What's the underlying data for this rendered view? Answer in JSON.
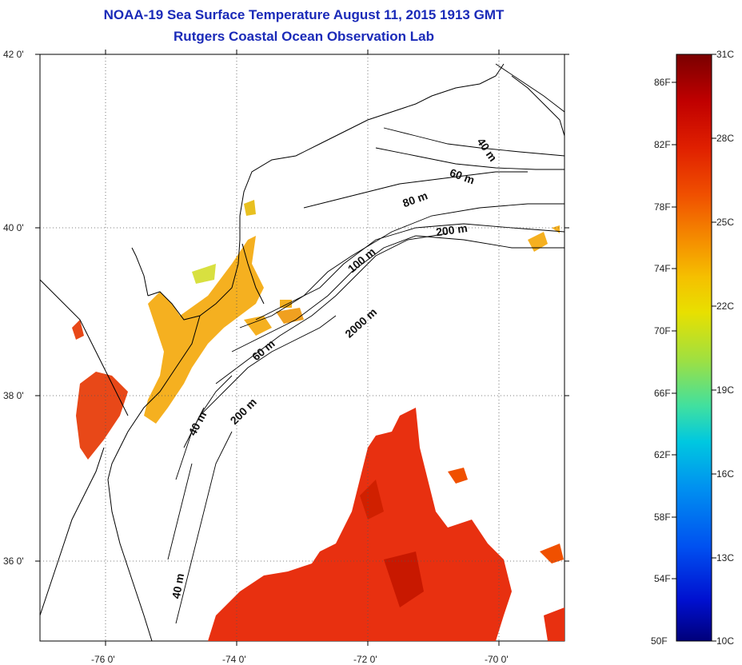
{
  "title": "NOAA-19 Sea Surface Temperature August 11, 2015 1913 GMT",
  "subtitle": "Rutgers Coastal Ocean Observation Lab",
  "axes": {
    "lat_ticks": [
      "42 0'",
      "40 0'",
      "38 0'",
      "36 0'"
    ],
    "lon_ticks": [
      "-76 0'",
      "-74 0'",
      "-72 0'",
      "-70 0'"
    ]
  },
  "contour_labels": [
    "40 m",
    "60 m",
    "80 m",
    "200 m",
    "100 m",
    "2000 m",
    "60 m",
    "200 m",
    "40 m",
    "40 m"
  ],
  "colorbar": {
    "fahrenheit": [
      "86F",
      "82F",
      "78F",
      "74F",
      "70F",
      "66F",
      "62F",
      "58F",
      "54F",
      "50F"
    ],
    "celsius": [
      "31C",
      "28C",
      "25C",
      "22C",
      "19C",
      "16C",
      "13C",
      "10C"
    ],
    "colors": [
      "#7a0000",
      "#c00000",
      "#e02000",
      "#f05000",
      "#f59000",
      "#f5c000",
      "#e8e000",
      "#a0e040",
      "#40e0a0",
      "#00c8e0",
      "#0090f0",
      "#0050f0",
      "#0010d0",
      "#00007a"
    ]
  },
  "colors": {
    "title": "#1a2ab8",
    "warm_sst": "#e83010",
    "bay_sst": "#f5b020"
  }
}
